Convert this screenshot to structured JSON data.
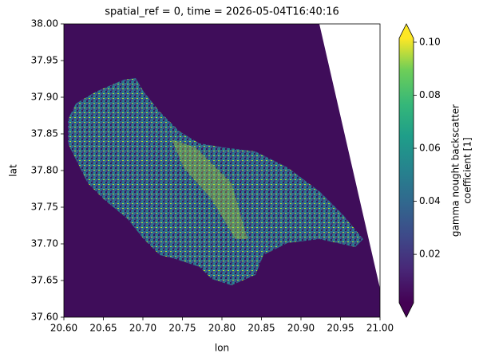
{
  "chart_data": {
    "type": "image",
    "title": "spatial_ref = 0, time = 2026-05-04T16:40:16",
    "xlabel": "lon",
    "ylabel": "lat",
    "xlim": [
      20.6,
      21.0
    ],
    "xticks": [
      {
        "value": 20.6,
        "label": "20.60"
      },
      {
        "value": 20.65,
        "label": "20.65"
      },
      {
        "value": 20.7,
        "label": "20.70"
      },
      {
        "value": 20.75,
        "label": "20.75"
      },
      {
        "value": 20.8,
        "label": "20.80"
      },
      {
        "value": 20.85,
        "label": "20.85"
      },
      {
        "value": 20.9,
        "label": "20.90"
      },
      {
        "value": 20.95,
        "label": "20.95"
      },
      {
        "value": 21.0,
        "label": "21.00"
      }
    ],
    "ylim": [
      37.6,
      38.0
    ],
    "yticks": [
      {
        "value": 37.6,
        "label": "37.60"
      },
      {
        "value": 37.65,
        "label": "37.65"
      },
      {
        "value": 37.7,
        "label": "37.70"
      },
      {
        "value": 37.75,
        "label": "37.75"
      },
      {
        "value": 37.8,
        "label": "37.80"
      },
      {
        "value": 37.85,
        "label": "37.85"
      },
      {
        "value": 37.9,
        "label": "37.90"
      },
      {
        "value": 37.95,
        "label": "37.95"
      },
      {
        "value": 38.0,
        "label": "38.00"
      }
    ],
    "colorbar_label": [
      "gamma nought backscatter",
      "coefficient [1]"
    ],
    "clim": [
      0.0017,
      0.1015
    ],
    "cticks": [
      0.02,
      0.04,
      0.06,
      0.08,
      {
        "value": 0.1,
        "label": "0.10"
      }
    ]
  }
}
